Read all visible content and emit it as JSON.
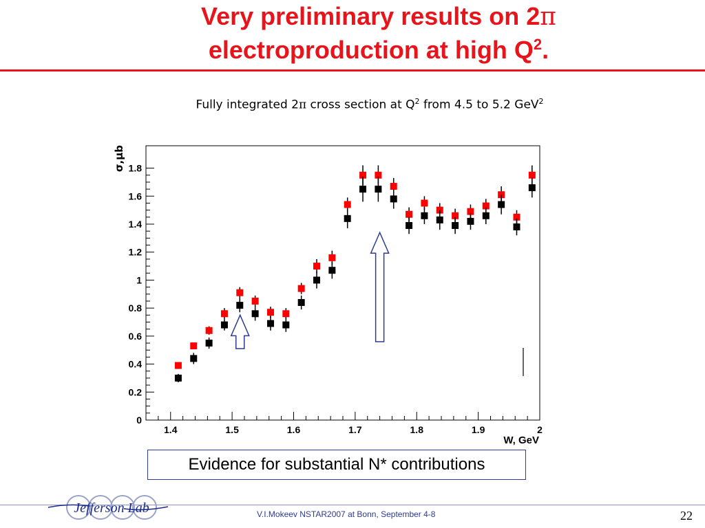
{
  "slide": {
    "title_line1_prefix": "Very preliminary results on 2",
    "title_line1_symbol": "π",
    "title_line2_prefix": "electroproduction at high Q",
    "title_line2_sup": "2",
    "title_line2_suffix": ".",
    "subtitle_part1": "Fully integrated 2",
    "subtitle_symbol": "π",
    "subtitle_part2": " cross section at  Q",
    "subtitle_sup1": "2",
    "subtitle_part3": " from 4.5 to 5.2 GeV",
    "subtitle_sup2": "2",
    "callout": "Evidence for substantial N* contributions",
    "footer": "V.I.Mokeev   NSTAR2007 at Bonn, September  4-8",
    "page_number": "22",
    "logo_text": "Jefferson Lab",
    "accent_color": "#e8141b",
    "footer_color": "#2d3a93"
  },
  "chart_data": {
    "type": "scatter",
    "xlabel": "W, GeV",
    "ylabel": "σ,μb",
    "xlim": [
      1.36,
      2.0
    ],
    "ylim": [
      0,
      1.96
    ],
    "xticks": [
      1.4,
      1.5,
      1.6,
      1.7,
      1.8,
      1.9,
      2
    ],
    "xtick_labels": [
      "1.4",
      "1.5",
      "1.6",
      "1.7",
      "1.8",
      "1.9",
      "2"
    ],
    "yticks": [
      0,
      0.2,
      0.4,
      0.6,
      0.8,
      1,
      1.2,
      1.4,
      1.6,
      1.8
    ],
    "ytick_labels": [
      "0",
      "0.2",
      "0.4",
      "0.6",
      "0.8",
      "1",
      "1.2",
      "1.4",
      "1.6",
      "1.8"
    ],
    "grid": false,
    "x": [
      1.4125,
      1.4375,
      1.4625,
      1.4875,
      1.5125,
      1.5375,
      1.5625,
      1.5875,
      1.6125,
      1.6375,
      1.6625,
      1.6875,
      1.7125,
      1.7375,
      1.7625,
      1.7875,
      1.8125,
      1.8375,
      1.8625,
      1.8875,
      1.9125,
      1.9375,
      1.9625,
      1.9875
    ],
    "series": [
      {
        "color": "#ff0000",
        "values": [
          0.39,
          0.53,
          0.64,
          0.76,
          0.91,
          0.85,
          0.77,
          0.76,
          0.94,
          1.1,
          1.16,
          1.54,
          1.75,
          1.75,
          1.67,
          1.47,
          1.55,
          1.5,
          1.46,
          1.49,
          1.53,
          1.61,
          1.45,
          1.75
        ],
        "errors": [
          0.02,
          0.02,
          0.03,
          0.04,
          0.04,
          0.04,
          0.04,
          0.04,
          0.04,
          0.05,
          0.05,
          0.05,
          0.07,
          0.07,
          0.06,
          0.05,
          0.05,
          0.05,
          0.05,
          0.05,
          0.05,
          0.06,
          0.05,
          0.07
        ]
      },
      {
        "color": "#000000",
        "values": [
          0.3,
          0.44,
          0.55,
          0.68,
          0.82,
          0.76,
          0.69,
          0.68,
          0.84,
          1.0,
          1.07,
          1.44,
          1.65,
          1.65,
          1.58,
          1.39,
          1.46,
          1.43,
          1.39,
          1.42,
          1.46,
          1.54,
          1.38,
          1.66
        ],
        "errors": [
          0.03,
          0.04,
          0.04,
          0.04,
          0.05,
          0.05,
          0.05,
          0.05,
          0.05,
          0.06,
          0.06,
          0.07,
          0.09,
          0.09,
          0.07,
          0.06,
          0.06,
          0.07,
          0.06,
          0.06,
          0.06,
          0.07,
          0.06,
          0.07
        ]
      }
    ],
    "annotations": [
      {
        "type": "up-arrow",
        "x": 1.513,
        "y_tail": 0.51,
        "y_head": 0.75
      },
      {
        "type": "up-arrow",
        "x": 1.74,
        "y_tail": 0.56,
        "y_head": 1.34
      }
    ]
  }
}
